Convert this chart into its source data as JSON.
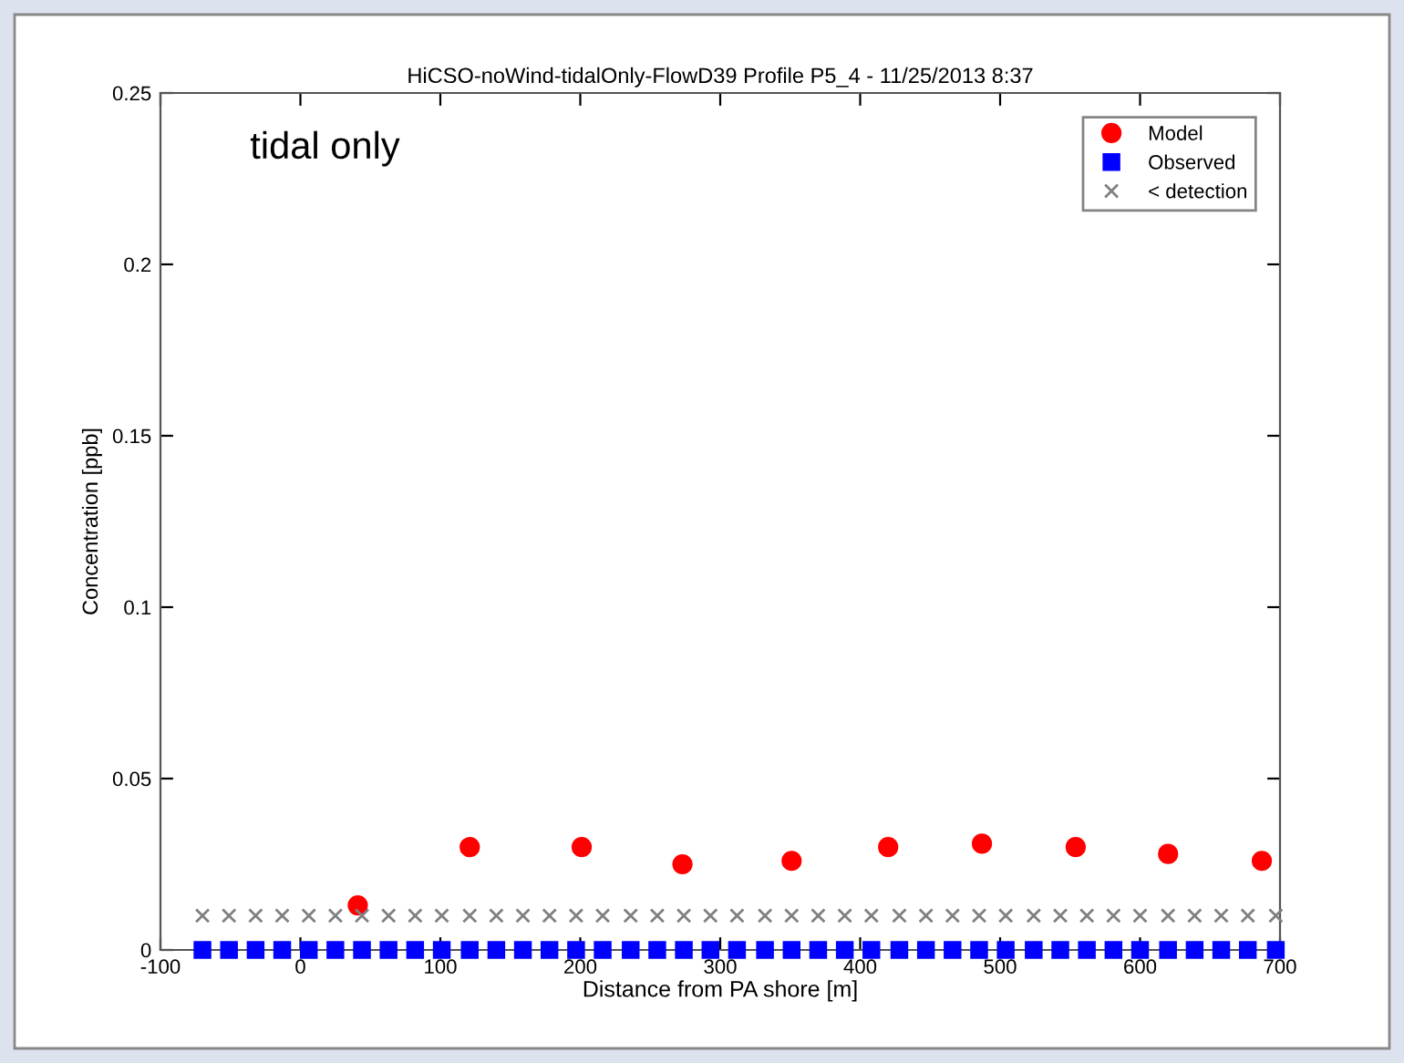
{
  "chart_data": {
    "type": "scatter",
    "title": "HiCSO-noWind-tidalOnly-FlowD39 Profile P5_4 - 11/25/2013 8:37",
    "xlabel": "Distance from PA shore [m]",
    "ylabel": "Concentration [ppb]",
    "annotations": [
      "tidal only"
    ],
    "xlim": [
      -100,
      700
    ],
    "ylim": [
      0,
      0.25
    ],
    "xticks": [
      -100,
      0,
      100,
      200,
      300,
      400,
      500,
      600,
      700
    ],
    "yticks": [
      0,
      0.05,
      0.1,
      0.15,
      0.2,
      0.25
    ],
    "grid": false,
    "legend": "top right",
    "series": [
      {
        "name": "Model",
        "color": "#ff0000",
        "marker": "circle",
        "x": [
          41,
          121,
          201,
          273,
          351,
          420,
          487,
          554,
          620,
          687
        ],
        "values": [
          0.013,
          0.03,
          0.03,
          0.025,
          0.026,
          0.03,
          0.031,
          0.03,
          0.028,
          0.026
        ]
      },
      {
        "name": "Observed",
        "color": "#0000ff",
        "marker": "square",
        "x": [
          -70,
          -51,
          -32,
          -13,
          6,
          25,
          44,
          63,
          82,
          101,
          121,
          140,
          159,
          178,
          197,
          216,
          236,
          255,
          274,
          293,
          312,
          332,
          351,
          370,
          389,
          408,
          428,
          447,
          466,
          485,
          504,
          524,
          543,
          562,
          581,
          600,
          620,
          639,
          658,
          677,
          697
        ],
        "values": [
          0,
          0,
          0,
          0,
          0,
          0,
          0,
          0,
          0,
          0,
          0,
          0,
          0,
          0,
          0,
          0,
          0,
          0,
          0,
          0,
          0,
          0,
          0,
          0,
          0,
          0,
          0,
          0,
          0,
          0,
          0,
          0,
          0,
          0,
          0,
          0,
          0,
          0,
          0,
          0,
          0
        ]
      },
      {
        "name": "< detection",
        "color": "#808080",
        "marker": "cross",
        "x": [
          -70,
          -51,
          -32,
          -13,
          6,
          25,
          44,
          63,
          82,
          101,
          121,
          140,
          159,
          178,
          197,
          216,
          236,
          255,
          274,
          293,
          312,
          332,
          351,
          370,
          389,
          408,
          428,
          447,
          466,
          485,
          504,
          524,
          543,
          562,
          581,
          600,
          620,
          639,
          658,
          677,
          697
        ],
        "values": [
          0.01,
          0.01,
          0.01,
          0.01,
          0.01,
          0.01,
          0.01,
          0.01,
          0.01,
          0.01,
          0.01,
          0.01,
          0.01,
          0.01,
          0.01,
          0.01,
          0.01,
          0.01,
          0.01,
          0.01,
          0.01,
          0.01,
          0.01,
          0.01,
          0.01,
          0.01,
          0.01,
          0.01,
          0.01,
          0.01,
          0.01,
          0.01,
          0.01,
          0.01,
          0.01,
          0.01,
          0.01,
          0.01,
          0.01,
          0.01,
          0.01
        ]
      }
    ]
  }
}
